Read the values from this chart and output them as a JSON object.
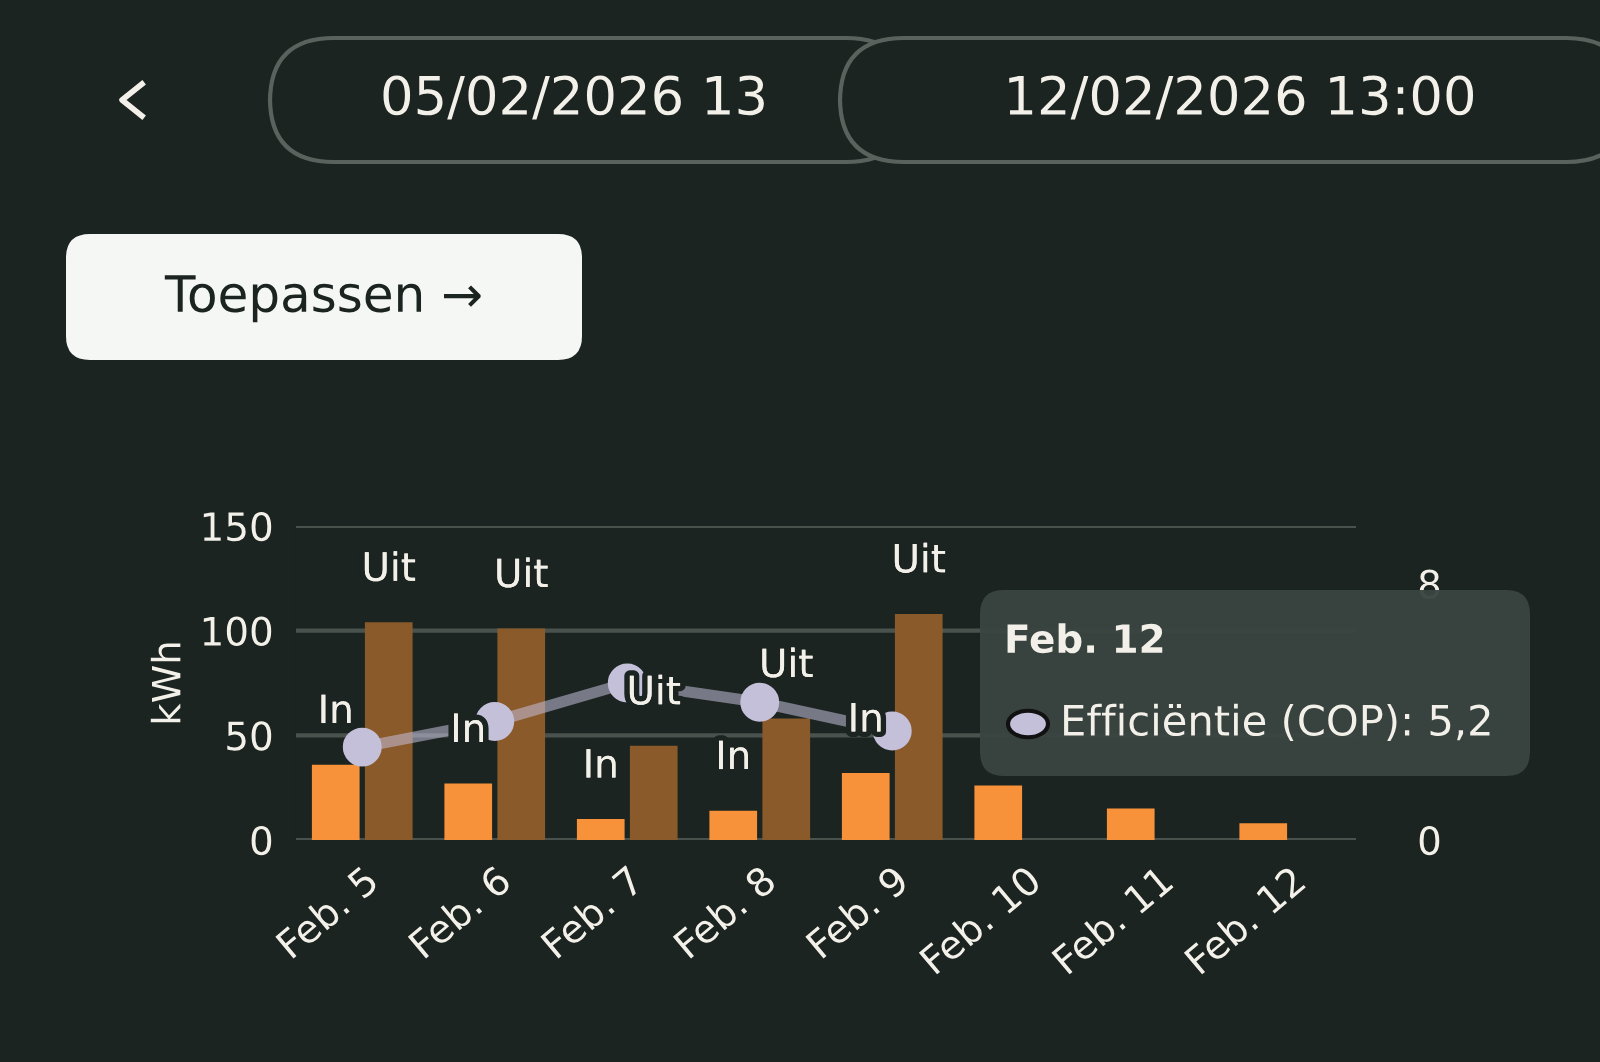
{
  "chart_data": {
    "type": "bar",
    "categories": [
      "Feb. 5",
      "Feb. 6",
      "Feb. 7",
      "Feb. 8",
      "Feb. 9",
      "Feb. 10",
      "Feb. 11",
      "Feb. 12"
    ],
    "ylabel": "kWh",
    "ylim": [
      0,
      150
    ],
    "yticks": [
      0,
      50,
      100,
      150
    ],
    "y2lim": [
      0,
      9.8
    ],
    "y2ticks": [
      0,
      8
    ],
    "grid": "y",
    "marker": "circle",
    "line_style": "solid",
    "series": [
      {
        "name": "In",
        "color": "#f7923a",
        "values": [
          36,
          27,
          10,
          14,
          32,
          26,
          15,
          8
        ]
      },
      {
        "name": "Uit",
        "color": "#8b5a2b",
        "values": [
          104,
          101,
          45,
          58,
          108,
          null,
          null,
          null
        ]
      },
      {
        "type": "line",
        "axis": "y2",
        "color": "#c4c0da",
        "values": [
          2.9,
          3.7,
          4.9,
          4.3,
          3.4,
          null,
          null,
          null
        ]
      }
    ],
    "annotations": [
      "05/02/2026 13",
      "12/02/2026 13:00",
      "Toepassen →",
      "Feb. 12",
      "Efficiëntie (COP): 5,2"
    ]
  }
}
